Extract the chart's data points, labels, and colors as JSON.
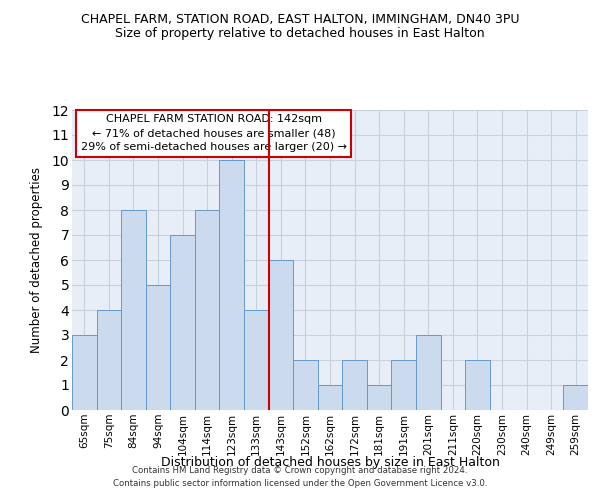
{
  "title": "CHAPEL FARM, STATION ROAD, EAST HALTON, IMMINGHAM, DN40 3PU",
  "subtitle": "Size of property relative to detached houses in East Halton",
  "xlabel": "Distribution of detached houses by size in East Halton",
  "ylabel": "Number of detached properties",
  "categories": [
    "65sqm",
    "75sqm",
    "84sqm",
    "94sqm",
    "104sqm",
    "114sqm",
    "123sqm",
    "133sqm",
    "143sqm",
    "152sqm",
    "162sqm",
    "172sqm",
    "181sqm",
    "191sqm",
    "201sqm",
    "211sqm",
    "220sqm",
    "230sqm",
    "240sqm",
    "249sqm",
    "259sqm"
  ],
  "values": [
    3,
    4,
    8,
    5,
    7,
    8,
    10,
    4,
    6,
    2,
    1,
    2,
    1,
    2,
    3,
    0,
    2,
    0,
    0,
    0,
    1
  ],
  "bar_color": "#ccdaed",
  "bar_edge_color": "#6699cc",
  "ref_line_color": "#cc0000",
  "ref_line_x": 7.5,
  "annotation_title": "CHAPEL FARM STATION ROAD: 142sqm",
  "annotation_line1": "← 71% of detached houses are smaller (48)",
  "annotation_line2": "29% of semi-detached houses are larger (20) →",
  "annotation_box_color": "#ffffff",
  "annotation_box_edge": "#cc0000",
  "ylim": [
    0,
    12
  ],
  "yticks": [
    0,
    1,
    2,
    3,
    4,
    5,
    6,
    7,
    8,
    9,
    10,
    11,
    12
  ],
  "grid_color": "#c8d0dc",
  "bg_color": "#e8eef8",
  "footer1": "Contains HM Land Registry data © Crown copyright and database right 2024.",
  "footer2": "Contains public sector information licensed under the Open Government Licence v3.0."
}
